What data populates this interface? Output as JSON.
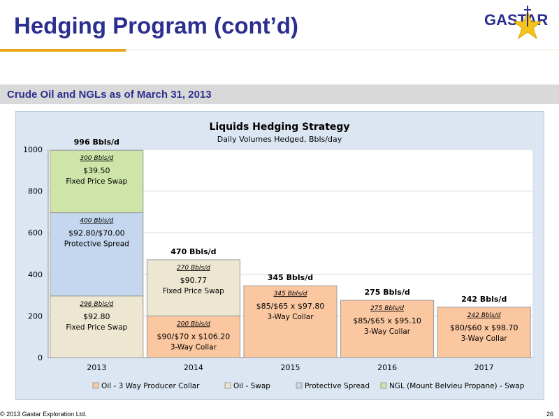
{
  "slide": {
    "title": "Hedging Program (cont’d)",
    "subtitle": "Crude Oil and NGLs as of March 31, 2013",
    "logo_text": "GASTAR",
    "footer_left": "© 2013 Gastar Exploration Ltd.",
    "footer_right": "26"
  },
  "colors": {
    "brand_blue": "#2b2f8f",
    "accent_gold": "#e8a317",
    "collar": "#fbc7a0",
    "swap": "#ede6d0",
    "spread": "#c4d7ee",
    "ngl": "#cfe4a8"
  },
  "chart_data": {
    "type": "bar",
    "stacked": true,
    "title": "Liquids Hedging Strategy",
    "subtitle": "Daily Volumes Hedged, Bbls/day",
    "categories": [
      "2013",
      "2014",
      "2015",
      "2016",
      "2017"
    ],
    "ylim": [
      0,
      1000
    ],
    "yticks": [
      "0",
      "200",
      "400",
      "600",
      "800",
      "1000"
    ],
    "totals": [
      "996 Bbls/d",
      "470 Bbls/d",
      "345 Bbls/d",
      "275 Bbls/d",
      "242 Bbls/d"
    ],
    "legend_position": "bottom",
    "series": [
      {
        "name": "Oil - 3 Way Producer Collar",
        "color": "#fbc7a0",
        "values": [
          0,
          200,
          345,
          275,
          242
        ]
      },
      {
        "name": "Oil - Swap",
        "color": "#ede6d0",
        "values": [
          296,
          270,
          0,
          0,
          0
        ]
      },
      {
        "name": "Protective Spread",
        "color": "#c4d7ee",
        "values": [
          400,
          0,
          0,
          0,
          0
        ]
      },
      {
        "name": "NGL (Mount Belvieu Propane) - Swap",
        "color": "#cfe4a8",
        "values": [
          300,
          0,
          0,
          0,
          0
        ]
      }
    ],
    "segment_labels": [
      {
        "category": 0,
        "series": 1,
        "volume": "296 Bbls/d",
        "line1": "$92.80",
        "line2": "Fixed Price Swap"
      },
      {
        "category": 0,
        "series": 2,
        "volume": "400 Bbls/d",
        "line1": "$92.80/$70.00",
        "line2": "Protective Spread"
      },
      {
        "category": 0,
        "series": 3,
        "volume": "300 Bbls/d",
        "line1": "$39.50",
        "line2": "Fixed Price Swap"
      },
      {
        "category": 1,
        "series": 0,
        "volume": "200 Bbls/d",
        "line1": "$90/$70 x $106.20",
        "line2": "3-Way Collar"
      },
      {
        "category": 1,
        "series": 1,
        "volume": "270 Bbls/d",
        "line1": "$90.77",
        "line2": "Fixed Price Swap"
      },
      {
        "category": 2,
        "series": 0,
        "volume": "345 Bbls/d",
        "line1": "$85/$65 x $97.80",
        "line2": "3-Way Collar"
      },
      {
        "category": 3,
        "series": 0,
        "volume": "275 Bbls/d",
        "line1": "$85/$65 x $95.10",
        "line2": "3-Way Collar"
      },
      {
        "category": 4,
        "series": 0,
        "volume": "242 Bbls/d",
        "line1": "$80/$60 x $98.70",
        "line2": "3-Way Collar"
      }
    ]
  }
}
